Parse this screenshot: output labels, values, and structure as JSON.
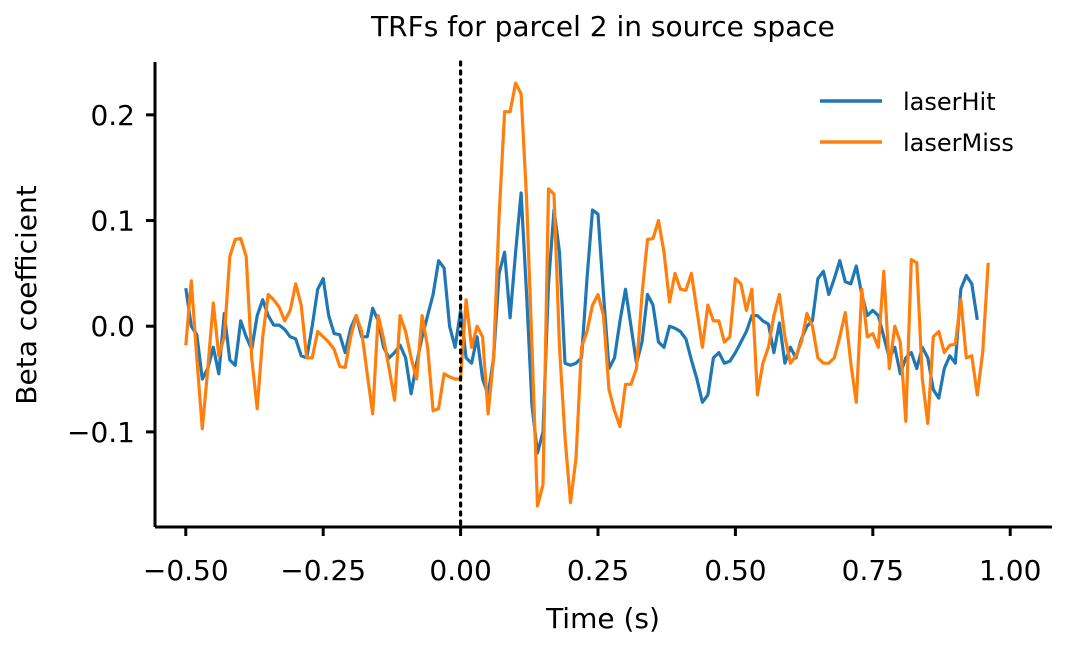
{
  "chart_data": {
    "type": "line",
    "title": "TRFs for parcel 2 in source space",
    "xlabel": "Time (s)",
    "ylabel": "Beta coefficient",
    "xlim": [
      -0.556,
      1.076
    ],
    "ylim": [
      -0.19,
      0.25
    ],
    "xticks": [
      -0.5,
      -0.25,
      0.0,
      0.25,
      0.5,
      0.75,
      1.0
    ],
    "xtick_labels": [
      "−0.50",
      "−0.25",
      "0.00",
      "0.25",
      "0.50",
      "0.75",
      "1.00"
    ],
    "yticks": [
      -0.1,
      0.0,
      0.1,
      0.2
    ],
    "ytick_labels": [
      "−0.1",
      "0.0",
      "0.1",
      "0.2"
    ],
    "vline": {
      "x": 0.0,
      "style": "dotted",
      "color": "#000000"
    },
    "legend_position": "top-right",
    "grid": false,
    "x_start": -0.5,
    "x_step": 0.01,
    "series": [
      {
        "name": "laserHit",
        "color": "#1f77b4",
        "values": [
          0.036,
          0.0,
          -0.008,
          -0.05,
          -0.04,
          -0.02,
          -0.045,
          0.012,
          -0.032,
          -0.037,
          0.005,
          -0.01,
          -0.022,
          0.01,
          0.025,
          0.01,
          0.001,
          0.001,
          -0.003,
          -0.01,
          -0.012,
          -0.028,
          -0.03,
          0.0,
          0.035,
          0.045,
          0.01,
          -0.007,
          -0.008,
          -0.025,
          -0.002,
          0.01,
          -0.01,
          -0.01,
          0.017,
          0.005,
          -0.02,
          -0.03,
          -0.025,
          -0.018,
          -0.03,
          -0.064,
          -0.035,
          -0.01,
          0.01,
          0.03,
          0.062,
          0.055,
          0.0,
          -0.02,
          0.015,
          -0.03,
          -0.035,
          -0.01,
          -0.05,
          -0.065,
          -0.03,
          0.05,
          0.07,
          0.008,
          0.07,
          0.126,
          0.03,
          -0.075,
          -0.12,
          -0.1,
          0.04,
          0.11,
          0.07,
          -0.035,
          -0.037,
          -0.035,
          -0.03,
          0.045,
          0.11,
          0.106,
          0.03,
          -0.04,
          -0.03,
          0.005,
          0.035,
          0.0,
          -0.035,
          -0.015,
          0.03,
          0.02,
          -0.015,
          -0.02,
          0.0,
          -0.002,
          -0.005,
          -0.012,
          -0.032,
          -0.05,
          -0.072,
          -0.065,
          -0.03,
          -0.025,
          -0.035,
          -0.033,
          -0.025,
          -0.015,
          -0.005,
          0.01,
          0.01,
          0.005,
          0.002,
          -0.025,
          0.003,
          -0.035,
          -0.02,
          -0.03,
          -0.012,
          0.0,
          0.005,
          0.045,
          0.052,
          0.03,
          0.045,
          0.062,
          0.042,
          0.04,
          0.057,
          0.03,
          0.01,
          0.015,
          0.01,
          -0.01,
          -0.03,
          -0.02,
          -0.045,
          -0.03,
          -0.025,
          -0.04,
          -0.02,
          -0.03,
          -0.06,
          -0.068,
          -0.04,
          -0.028,
          -0.035,
          0.035,
          0.048,
          0.04,
          0.006
        ]
      },
      {
        "name": "laserMiss",
        "color": "#ff7f0e",
        "values": [
          -0.018,
          0.043,
          -0.03,
          -0.097,
          -0.04,
          0.022,
          -0.028,
          -0.01,
          0.066,
          0.082,
          0.083,
          0.066,
          -0.03,
          -0.078,
          -0.01,
          0.03,
          0.025,
          0.018,
          0.005,
          0.015,
          0.04,
          0.02,
          -0.03,
          -0.03,
          -0.005,
          -0.01,
          -0.015,
          -0.022,
          -0.038,
          -0.039,
          -0.01,
          0.01,
          -0.005,
          -0.045,
          -0.083,
          0.01,
          -0.012,
          -0.04,
          -0.07,
          0.01,
          -0.005,
          -0.03,
          -0.05,
          0.01,
          -0.02,
          -0.08,
          -0.078,
          -0.045,
          -0.048,
          -0.05,
          -0.05,
          0.025,
          -0.02,
          0.0,
          -0.01,
          -0.083,
          -0.03,
          0.104,
          0.203,
          0.203,
          0.23,
          0.22,
          0.12,
          -0.02,
          -0.17,
          -0.15,
          0.13,
          0.125,
          -0.02,
          -0.105,
          -0.167,
          -0.125,
          -0.02,
          -0.005,
          0.02,
          0.03,
          0.01,
          -0.06,
          -0.08,
          -0.095,
          -0.055,
          -0.055,
          -0.04,
          0.03,
          0.082,
          0.083,
          0.1,
          0.07,
          0.023,
          0.05,
          0.035,
          0.034,
          0.05,
          0.015,
          -0.02,
          0.02,
          0.005,
          0.005,
          -0.015,
          -0.01,
          0.045,
          0.04,
          0.015,
          0.035,
          -0.065,
          -0.035,
          -0.02,
          0.01,
          0.03,
          -0.01,
          -0.035,
          -0.028,
          -0.015,
          0.012,
          0.0,
          -0.03,
          -0.035,
          -0.035,
          -0.03,
          -0.01,
          0.013,
          -0.035,
          -0.072,
          0.035,
          -0.01,
          -0.007,
          -0.02,
          0.052,
          -0.04,
          0.0,
          -0.015,
          -0.09,
          0.063,
          0.06,
          -0.05,
          -0.092,
          -0.01,
          -0.005,
          -0.025,
          -0.018,
          -0.017,
          0.025,
          -0.03,
          -0.028,
          -0.065,
          -0.025,
          0.06
        ]
      }
    ]
  }
}
